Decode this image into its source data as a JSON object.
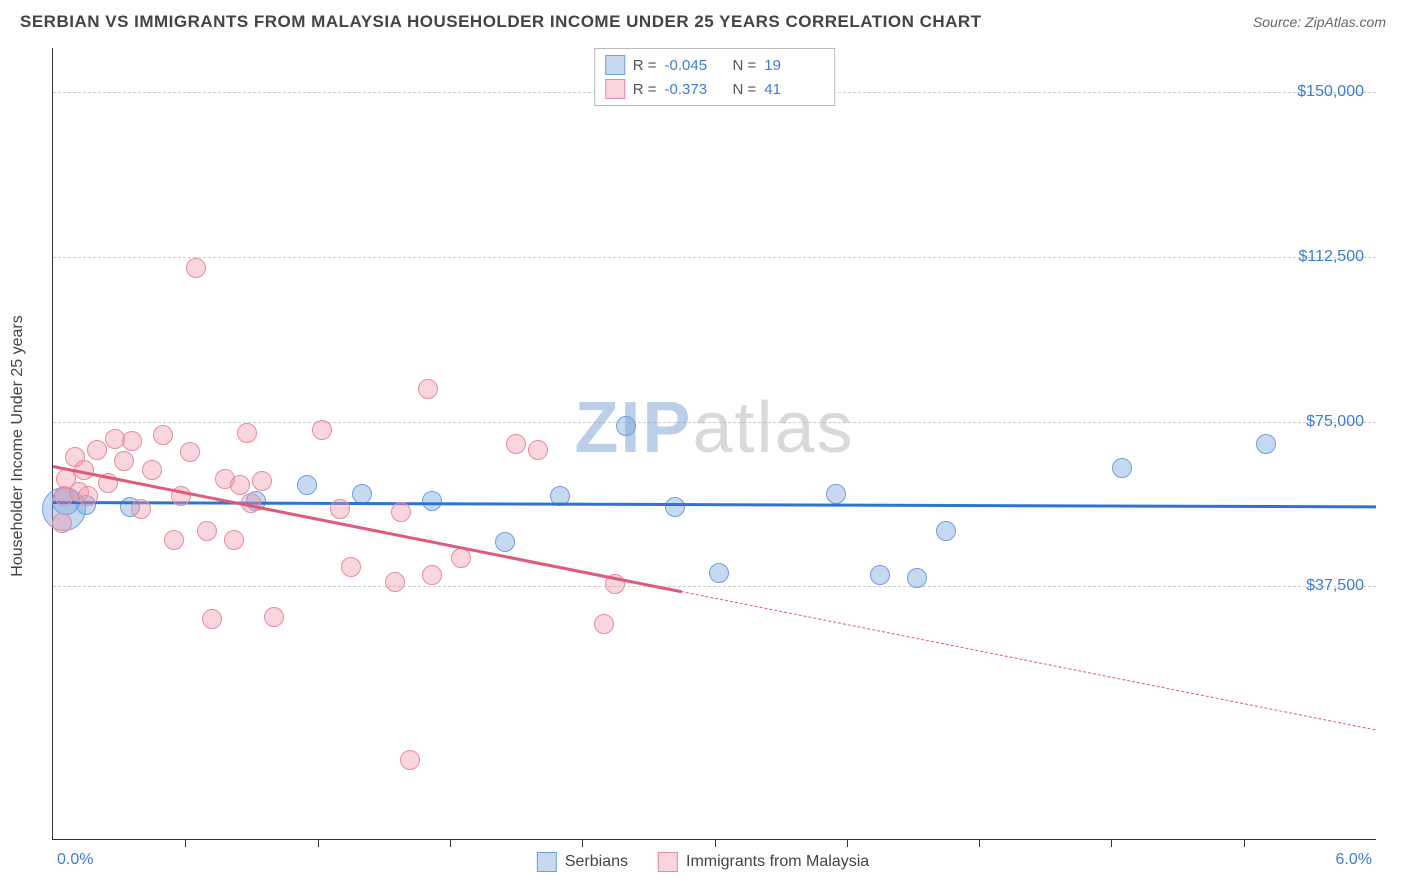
{
  "header": {
    "title": "SERBIAN VS IMMIGRANTS FROM MALAYSIA HOUSEHOLDER INCOME UNDER 25 YEARS CORRELATION CHART",
    "source_label": "Source:",
    "source_value": "ZipAtlas.com"
  },
  "chart": {
    "type": "scatter",
    "ylabel": "Householder Income Under 25 years",
    "xlim": [
      0.0,
      6.0
    ],
    "ylim": [
      -20000,
      160000
    ],
    "x_start_label": "0.0%",
    "x_end_label": "6.0%",
    "y_ticks": [
      {
        "v": 37500,
        "label": "$37,500"
      },
      {
        "v": 75000,
        "label": "$75,000"
      },
      {
        "v": 112500,
        "label": "$112,500"
      },
      {
        "v": 150000,
        "label": "$150,000"
      }
    ],
    "x_tick_positions": [
      0.6,
      1.2,
      1.8,
      2.4,
      3.0,
      3.6,
      4.2,
      4.8,
      5.4
    ],
    "grid_color": "#cccccc",
    "background_color": "#ffffff",
    "series": [
      {
        "key": "serbians",
        "label": "Serbians",
        "fill": "rgba(130,170,225,0.45)",
        "stroke": "#6fa0de",
        "trend_color": "#2f74d0",
        "r_value": "-0.045",
        "n_value": "19",
        "marker_radius": 10,
        "trend": {
          "x1": 0.0,
          "y1": 57000,
          "x2": 6.0,
          "y2": 56000
        },
        "points": [
          {
            "x": 0.05,
            "y": 55000,
            "r": 22
          },
          {
            "x": 0.06,
            "y": 57000,
            "r": 14
          },
          {
            "x": 0.15,
            "y": 56000,
            "r": 10
          },
          {
            "x": 0.35,
            "y": 55500,
            "r": 10
          },
          {
            "x": 0.92,
            "y": 57000,
            "r": 10
          },
          {
            "x": 1.15,
            "y": 60500,
            "r": 10
          },
          {
            "x": 1.4,
            "y": 58500,
            "r": 10
          },
          {
            "x": 1.72,
            "y": 57000,
            "r": 10
          },
          {
            "x": 2.05,
            "y": 47500,
            "r": 10
          },
          {
            "x": 2.3,
            "y": 58000,
            "r": 10
          },
          {
            "x": 2.6,
            "y": 74000,
            "r": 10
          },
          {
            "x": 2.82,
            "y": 55500,
            "r": 10
          },
          {
            "x": 3.02,
            "y": 40500,
            "r": 10
          },
          {
            "x": 3.55,
            "y": 58500,
            "r": 10
          },
          {
            "x": 3.75,
            "y": 40000,
            "r": 10
          },
          {
            "x": 3.92,
            "y": 39500,
            "r": 10
          },
          {
            "x": 4.05,
            "y": 50000,
            "r": 10
          },
          {
            "x": 4.85,
            "y": 64500,
            "r": 10
          },
          {
            "x": 5.5,
            "y": 70000,
            "r": 10
          }
        ]
      },
      {
        "key": "malaysia",
        "label": "Immigrants from Malaysia",
        "fill": "rgba(240,150,170,0.40)",
        "stroke": "#e78ba3",
        "trend_color": "#e05a7a",
        "r_value": "-0.373",
        "n_value": "41",
        "marker_radius": 10,
        "trend_solid": {
          "x1": 0.0,
          "y1": 65000,
          "x2": 2.85,
          "y2": 36500
        },
        "trend_dashed": {
          "x1": 2.85,
          "y1": 36500,
          "x2": 6.0,
          "y2": 5000
        },
        "points": [
          {
            "x": 0.04,
            "y": 52000
          },
          {
            "x": 0.05,
            "y": 58000
          },
          {
            "x": 0.06,
            "y": 62000
          },
          {
            "x": 0.1,
            "y": 67000
          },
          {
            "x": 0.12,
            "y": 59000
          },
          {
            "x": 0.14,
            "y": 64000
          },
          {
            "x": 0.16,
            "y": 58000
          },
          {
            "x": 0.2,
            "y": 68500
          },
          {
            "x": 0.25,
            "y": 61000
          },
          {
            "x": 0.28,
            "y": 71000
          },
          {
            "x": 0.32,
            "y": 66000
          },
          {
            "x": 0.36,
            "y": 70500
          },
          {
            "x": 0.4,
            "y": 55000
          },
          {
            "x": 0.45,
            "y": 64000
          },
          {
            "x": 0.5,
            "y": 72000
          },
          {
            "x": 0.55,
            "y": 48000
          },
          {
            "x": 0.58,
            "y": 58000
          },
          {
            "x": 0.62,
            "y": 68000
          },
          {
            "x": 0.65,
            "y": 110000
          },
          {
            "x": 0.7,
            "y": 50000
          },
          {
            "x": 0.72,
            "y": 30000
          },
          {
            "x": 0.78,
            "y": 62000
          },
          {
            "x": 0.82,
            "y": 48000
          },
          {
            "x": 0.85,
            "y": 60500
          },
          {
            "x": 0.88,
            "y": 72500
          },
          {
            "x": 0.9,
            "y": 56500
          },
          {
            "x": 0.95,
            "y": 61500
          },
          {
            "x": 1.0,
            "y": 30500
          },
          {
            "x": 1.22,
            "y": 73000
          },
          {
            "x": 1.3,
            "y": 55000
          },
          {
            "x": 1.35,
            "y": 42000
          },
          {
            "x": 1.55,
            "y": 38500
          },
          {
            "x": 1.58,
            "y": 54500
          },
          {
            "x": 1.62,
            "y": -2000
          },
          {
            "x": 1.7,
            "y": 82500
          },
          {
            "x": 1.72,
            "y": 40000
          },
          {
            "x": 1.85,
            "y": 44000
          },
          {
            "x": 2.1,
            "y": 70000
          },
          {
            "x": 2.2,
            "y": 68500
          },
          {
            "x": 2.5,
            "y": 29000
          },
          {
            "x": 2.55,
            "y": 38000
          }
        ]
      }
    ]
  },
  "watermark": {
    "part1": "ZIP",
    "part2": "atlas"
  }
}
